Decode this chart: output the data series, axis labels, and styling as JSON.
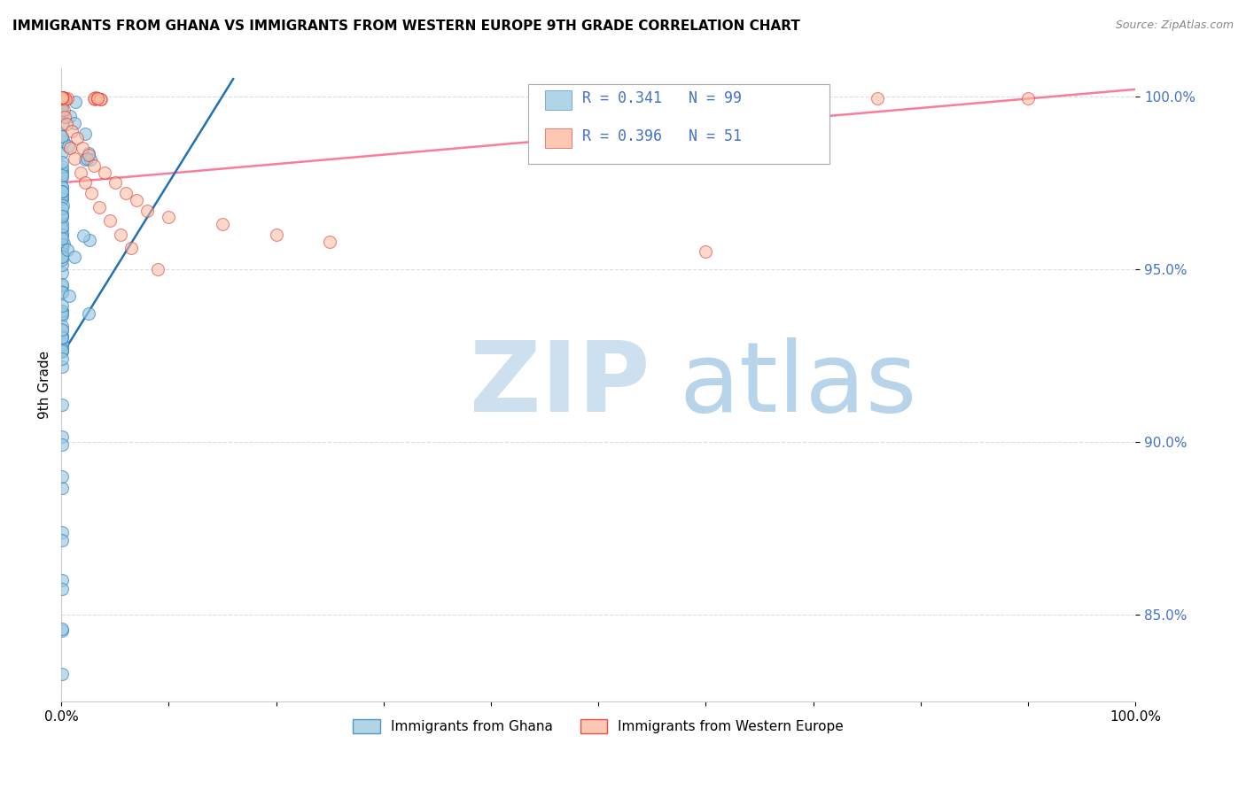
{
  "title": "IMMIGRANTS FROM GHANA VS IMMIGRANTS FROM WESTERN EUROPE 9TH GRADE CORRELATION CHART",
  "source": "Source: ZipAtlas.com",
  "ylabel": "9th Grade",
  "ghana_color": "#9ecae1",
  "ghana_edge_color": "#3182bd",
  "western_europe_color": "#fcbba1",
  "western_europe_edge_color": "#de2d26",
  "ghana_line_color": "#2171b5",
  "western_europe_line_color": "#fc7b9a",
  "R_ghana": 0.341,
  "N_ghana": 99,
  "R_western_europe": 0.396,
  "N_western_europe": 51,
  "legend_label_ghana": "Immigrants from Ghana",
  "legend_label_western_europe": "Immigrants from Western Europe",
  "ytick_color": "#4472c4",
  "grid_color": "#dddddd",
  "watermark_zip_color": "#cde0f0",
  "watermark_atlas_color": "#b8d4ea"
}
